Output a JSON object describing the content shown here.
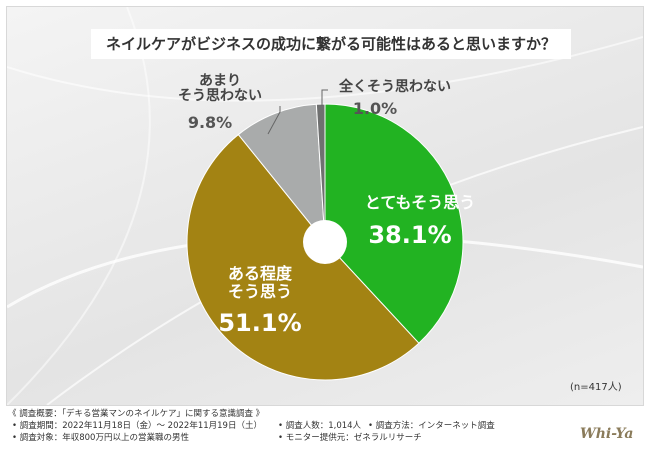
{
  "chart_data": {
    "type": "pie",
    "title": "ネイルケアがビジネスの成功に繋がる可能性はあると思いますか？",
    "categories": [
      "とてもそう思う",
      "ある程度\nそう思う",
      "あまり\nそう思わない",
      "全くそう思わない"
    ],
    "values": [
      38.1,
      51.1,
      9.8,
      1.0
    ],
    "value_labels": [
      "38.1%",
      "51.1%",
      "9.8%",
      "1.0%"
    ],
    "colors": [
      "#22b322",
      "#a38313",
      "#a9abab",
      "#6f7070"
    ],
    "note": "(n=417人)",
    "footnotes": [
      "《 調査概要：「デキる営業マンのネイルケア」に関する意識調査 》",
      "調査期間：2022年11月18日（金）～ 2022年11月19日（土）",
      "調査人数：1,014人",
      "調査方法：インターネット調査",
      "調査対象：年収800万円以上の営業職の男性",
      "モニター提供元：ゼネラルリサーチ"
    ],
    "logo": "Whi-Ya"
  }
}
